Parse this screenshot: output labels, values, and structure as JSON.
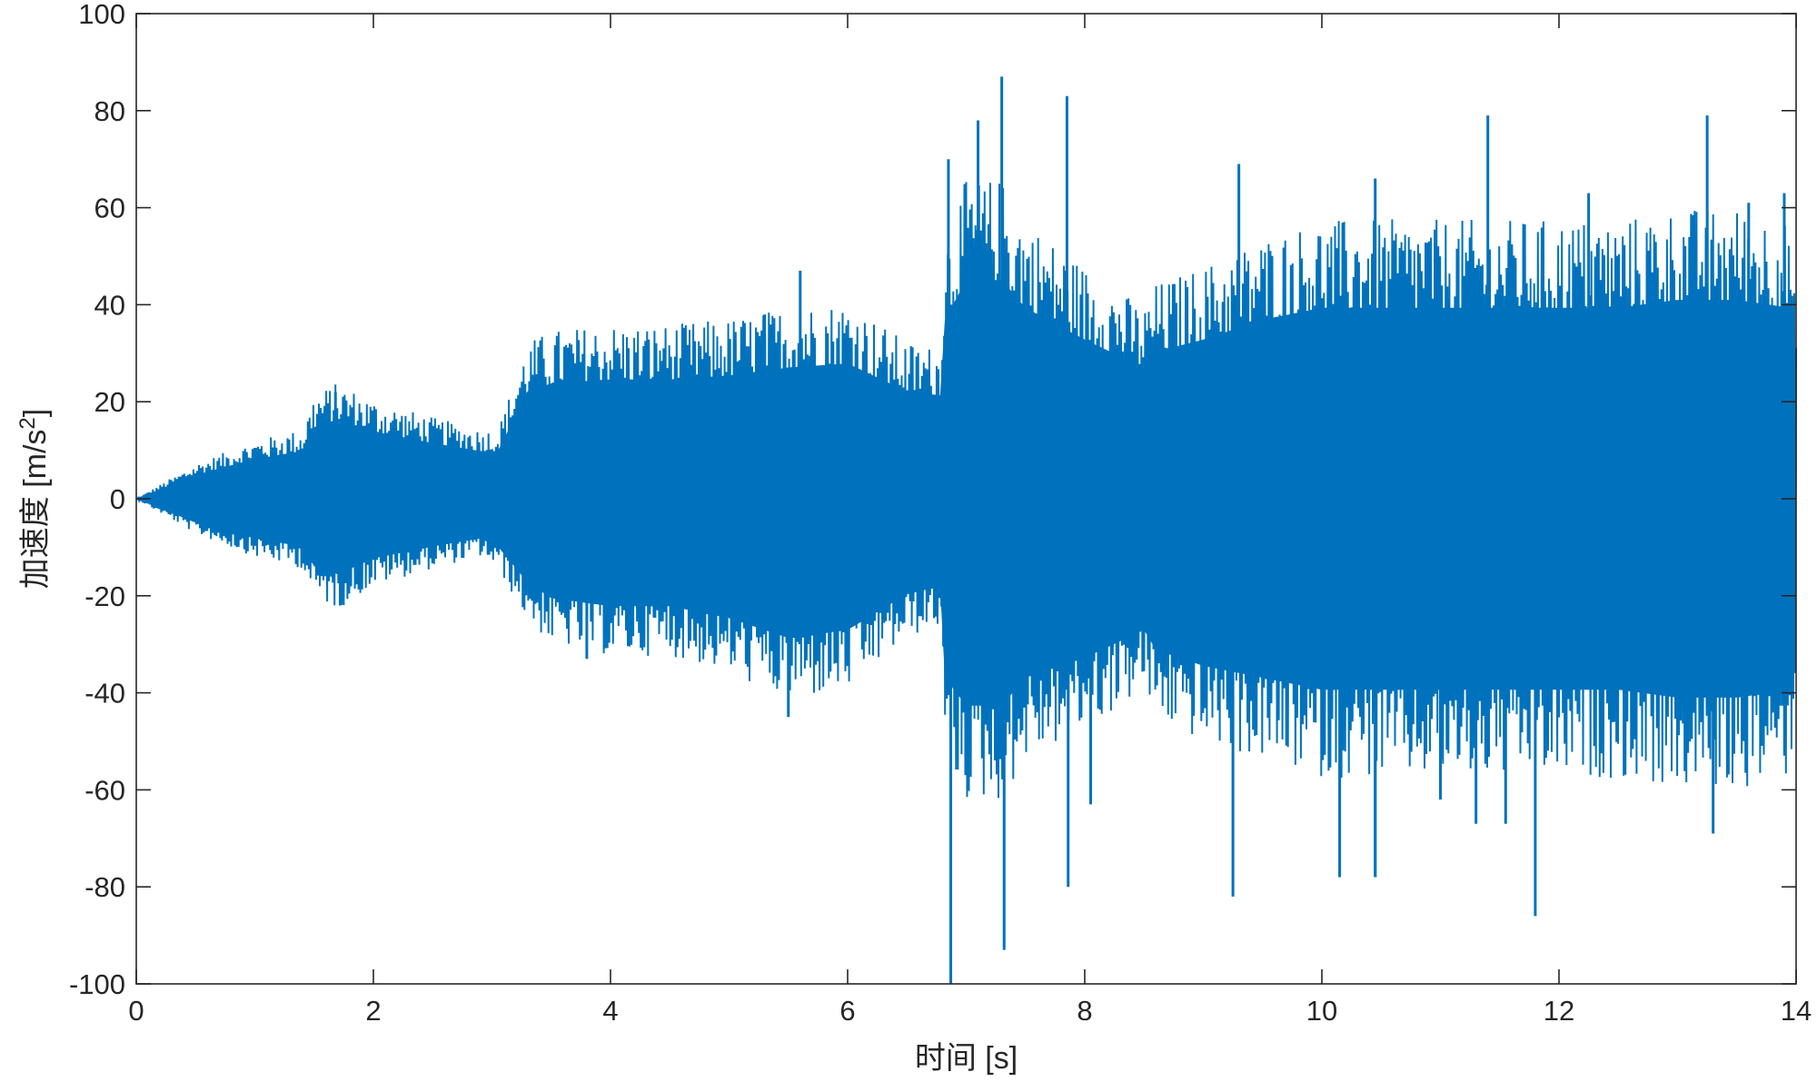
{
  "chart_data": {
    "type": "line",
    "title": "",
    "xlabel": "时间 [s]",
    "ylabel_main": "加速度 [m/s",
    "ylabel_sup": "2",
    "ylabel_close": "]",
    "xlim": [
      0,
      14
    ],
    "ylim": [
      -100,
      100
    ],
    "xticks": [
      0,
      2,
      4,
      6,
      8,
      10,
      12,
      14
    ],
    "yticks": [
      -100,
      -80,
      -60,
      -40,
      -20,
      0,
      20,
      40,
      60,
      80,
      100
    ],
    "grid": false,
    "legend": "none",
    "series": [
      {
        "color": "#0072BD",
        "envelope": {
          "x": [
            0.0,
            0.5,
            1.0,
            1.4,
            1.5,
            1.7,
            2.0,
            2.5,
            2.9,
            3.05,
            3.3,
            3.5,
            4.0,
            4.5,
            5.0,
            5.5,
            6.0,
            6.5,
            6.78,
            6.82,
            7.0,
            7.3,
            7.5,
            8.0,
            8.5,
            8.6,
            9.0,
            9.5,
            10.0,
            10.5,
            11.0,
            11.5,
            12.0,
            12.5,
            13.0,
            13.5,
            13.95,
            14.0
          ],
          "upper": [
            0,
            6,
            10,
            12,
            18,
            20,
            17,
            14,
            12,
            12,
            27,
            29,
            30,
            30,
            31,
            33,
            34,
            27,
            26,
            45,
            55,
            55,
            48,
            40,
            33,
            37,
            40,
            45,
            48,
            48,
            48,
            48,
            48,
            48,
            50,
            50,
            48,
            30
          ],
          "lower": [
            0,
            -6,
            -10,
            -12,
            -17,
            -19,
            -15,
            -12,
            -10,
            -12,
            -21,
            -25,
            -27,
            -27,
            -30,
            -35,
            -33,
            -24,
            -22,
            -45,
            -52,
            -52,
            -45,
            -40,
            -33,
            -38,
            -42,
            -45,
            -48,
            -48,
            -48,
            -48,
            -48,
            -48,
            -50,
            -50,
            -48,
            -30
          ]
        },
        "peaks": [
          {
            "x": 1.68,
            "y": 22
          },
          {
            "x": 1.72,
            "y": -22
          },
          {
            "x": 3.4,
            "y": 30
          },
          {
            "x": 3.8,
            "y": -33
          },
          {
            "x": 4.45,
            "y": 31
          },
          {
            "x": 5.3,
            "y": 38
          },
          {
            "x": 5.5,
            "y": -45
          },
          {
            "x": 5.6,
            "y": 47
          },
          {
            "x": 6.85,
            "y": 70
          },
          {
            "x": 6.87,
            "y": -100
          },
          {
            "x": 7.1,
            "y": 78
          },
          {
            "x": 7.3,
            "y": 87
          },
          {
            "x": 7.32,
            "y": -93
          },
          {
            "x": 7.85,
            "y": 83
          },
          {
            "x": 7.86,
            "y": -80
          },
          {
            "x": 8.05,
            "y": -63
          },
          {
            "x": 9.25,
            "y": -82
          },
          {
            "x": 9.3,
            "y": 69
          },
          {
            "x": 10.15,
            "y": -78
          },
          {
            "x": 10.45,
            "y": 66
          },
          {
            "x": 10.45,
            "y": -78
          },
          {
            "x": 10.45,
            "y": -78
          },
          {
            "x": 11.0,
            "y": -62
          },
          {
            "x": 11.3,
            "y": -67
          },
          {
            "x": 11.4,
            "y": 79
          },
          {
            "x": 11.55,
            "y": -67
          },
          {
            "x": 11.8,
            "y": -86
          },
          {
            "x": 12.25,
            "y": 63
          },
          {
            "x": 13.25,
            "y": 79
          },
          {
            "x": 13.3,
            "y": -69
          },
          {
            "x": 13.6,
            "y": 61
          },
          {
            "x": 13.9,
            "y": 63
          }
        ]
      }
    ]
  }
}
